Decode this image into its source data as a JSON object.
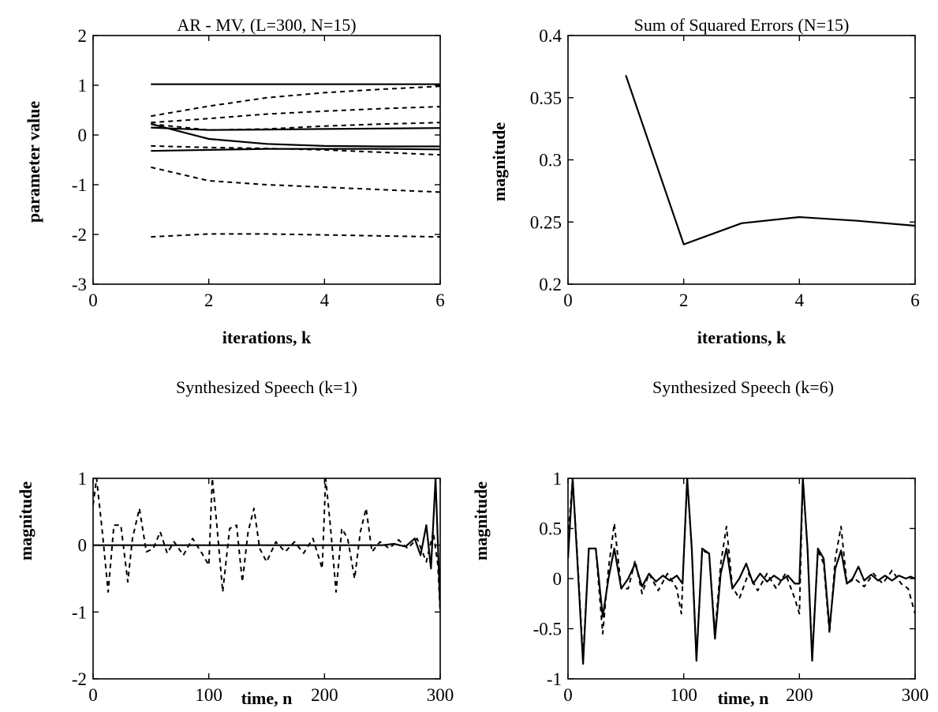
{
  "chart_data": [
    {
      "type": "line",
      "title": "AR - MV, (L=300, N=15)",
      "xlabel": "iterations, k",
      "ylabel": "parameter value",
      "xlim": [
        0,
        6
      ],
      "ylim": [
        -3,
        2
      ],
      "xticks": [
        "0",
        "2",
        "4",
        "6"
      ],
      "yticks": [
        "-3",
        "-2",
        "-1",
        "0",
        "1",
        "2"
      ],
      "series": [
        {
          "style": "solid",
          "x": [
            1,
            6
          ],
          "y": [
            1.02,
            1.02
          ]
        },
        {
          "style": "solid",
          "x": [
            1,
            2,
            3,
            4,
            5,
            6
          ],
          "y": [
            0.15,
            0.1,
            0.11,
            0.12,
            0.13,
            0.14
          ]
        },
        {
          "style": "solid",
          "x": [
            1,
            2,
            3,
            4,
            5,
            6
          ],
          "y": [
            0.22,
            -0.08,
            -0.18,
            -0.22,
            -0.23,
            -0.23
          ]
        },
        {
          "style": "solid",
          "x": [
            1,
            2,
            3,
            4,
            5,
            6
          ],
          "y": [
            -0.32,
            -0.3,
            -0.28,
            -0.28,
            -0.28,
            -0.29
          ]
        },
        {
          "style": "dashed",
          "x": [
            1,
            2,
            3,
            4,
            5,
            6
          ],
          "y": [
            0.38,
            0.58,
            0.75,
            0.85,
            0.92,
            0.98
          ]
        },
        {
          "style": "dashed",
          "x": [
            1,
            2,
            3,
            4,
            5,
            6
          ],
          "y": [
            0.25,
            0.33,
            0.42,
            0.48,
            0.53,
            0.57
          ]
        },
        {
          "style": "dashed",
          "x": [
            1,
            2,
            3,
            4,
            5,
            6
          ],
          "y": [
            0.22,
            0.1,
            0.12,
            0.18,
            0.22,
            0.25
          ]
        },
        {
          "style": "dashed",
          "x": [
            1,
            2,
            3,
            4,
            5,
            6
          ],
          "y": [
            -0.22,
            -0.25,
            -0.27,
            -0.3,
            -0.35,
            -0.4
          ]
        },
        {
          "style": "dashed",
          "x": [
            1,
            2,
            3,
            4,
            5,
            6
          ],
          "y": [
            -0.65,
            -0.92,
            -1.0,
            -1.05,
            -1.1,
            -1.15
          ]
        },
        {
          "style": "dashed",
          "x": [
            1,
            2,
            3,
            4,
            5,
            6
          ],
          "y": [
            -2.05,
            -1.99,
            -1.99,
            -2.01,
            -2.03,
            -2.05
          ]
        }
      ]
    },
    {
      "type": "line",
      "title": "Sum of Squared Errors (N=15)",
      "xlabel": "iterations, k",
      "ylabel": "magnitude",
      "xlim": [
        0,
        6
      ],
      "ylim": [
        0.2,
        0.4
      ],
      "xticks": [
        "0",
        "2",
        "4",
        "6"
      ],
      "yticks": [
        "0.2",
        "0.25",
        "0.3",
        "0.35",
        "0.4"
      ],
      "series": [
        {
          "style": "solid",
          "x": [
            1,
            2,
            3,
            4,
            5,
            6
          ],
          "y": [
            0.368,
            0.232,
            0.249,
            0.254,
            0.251,
            0.247
          ]
        }
      ]
    },
    {
      "type": "line",
      "title": "Synthesized Speech  (k=1)",
      "xlabel": "time, n",
      "ylabel": "magnitude",
      "xlim": [
        0,
        300
      ],
      "ylim": [
        -2,
        1
      ],
      "xticks": [
        "0",
        "100",
        "200",
        "300"
      ],
      "yticks": [
        "-2",
        "-1",
        "0",
        "1"
      ],
      "series": [
        {
          "style": "solid",
          "x": [
            0,
            250,
            260,
            270,
            278,
            283,
            288,
            292,
            296,
            300
          ],
          "y": [
            0,
            0,
            0.02,
            -0.02,
            0.1,
            -0.15,
            0.3,
            -0.35,
            1.0,
            -0.95
          ]
        },
        {
          "style": "dashed",
          "x": [
            0,
            3,
            8,
            13,
            18,
            24,
            30,
            34,
            40,
            46,
            52,
            58,
            64,
            70,
            78,
            86,
            94,
            100,
            103,
            107,
            112,
            118,
            124,
            129,
            134,
            139,
            144,
            150,
            158,
            166,
            174,
            182,
            190,
            198,
            201,
            205,
            210,
            215,
            220,
            226,
            231,
            236,
            241,
            248,
            256,
            264,
            272,
            280,
            288,
            294,
            298,
            300
          ],
          "y": [
            0.6,
            1.0,
            0.2,
            -0.7,
            0.3,
            0.3,
            -0.55,
            0.1,
            0.55,
            -0.1,
            -0.05,
            0.2,
            -0.12,
            0.05,
            -0.15,
            0.1,
            -0.12,
            -0.3,
            1.0,
            0.3,
            -0.7,
            0.25,
            0.3,
            -0.55,
            0.2,
            0.55,
            -0.05,
            -0.25,
            0.05,
            -0.1,
            0.05,
            -0.12,
            0.1,
            -0.35,
            1.0,
            0.3,
            -0.7,
            0.25,
            0.1,
            -0.5,
            0.2,
            0.55,
            -0.1,
            0.05,
            -0.05,
            0.08,
            -0.05,
            0.1,
            -0.25,
            0.2,
            -0.3,
            -1.0
          ]
        }
      ]
    },
    {
      "type": "line",
      "title": "Synthesized Speech  (k=6)",
      "xlabel": "time, n",
      "ylabel": "magnitude",
      "xlim": [
        0,
        300
      ],
      "ylim": [
        -1,
        1
      ],
      "xticks": [
        "0",
        "100",
        "200",
        "300"
      ],
      "yticks": [
        "-1",
        "-0.5",
        "0",
        "0.5",
        "1"
      ],
      "series": [
        {
          "style": "solid",
          "x": [
            0,
            4,
            8,
            13,
            18,
            24,
            30,
            35,
            40,
            46,
            52,
            58,
            64,
            70,
            76,
            82,
            88,
            94,
            99,
            103,
            107,
            111,
            116,
            122,
            127,
            132,
            137,
            142,
            148,
            154,
            160,
            166,
            172,
            178,
            184,
            190,
            196,
            200,
            203,
            207,
            211,
            216,
            221,
            226,
            231,
            236,
            241,
            246,
            251,
            256,
            262,
            268,
            274,
            280,
            286,
            292,
            296,
            300
          ],
          "y": [
            0.2,
            1.0,
            0.2,
            -0.85,
            0.3,
            0.3,
            -0.38,
            0.0,
            0.3,
            -0.1,
            0.0,
            0.15,
            -0.08,
            0.05,
            -0.03,
            0.03,
            -0.02,
            0.03,
            -0.05,
            1.0,
            0.3,
            -0.82,
            0.3,
            0.25,
            -0.6,
            0.05,
            0.3,
            -0.1,
            0.0,
            0.15,
            -0.05,
            0.05,
            -0.03,
            0.03,
            -0.02,
            0.03,
            -0.05,
            -0.05,
            1.0,
            0.3,
            -0.82,
            0.3,
            0.2,
            -0.5,
            0.1,
            0.28,
            -0.05,
            0.0,
            0.12,
            -0.02,
            0.04,
            -0.02,
            0.03,
            -0.02,
            0.03,
            0.0,
            0.02,
            0.0
          ]
        },
        {
          "style": "dashed",
          "x": [
            0,
            4,
            8,
            13,
            18,
            24,
            30,
            35,
            40,
            46,
            52,
            58,
            64,
            70,
            78,
            86,
            94,
            98,
            103,
            107,
            111,
            116,
            122,
            127,
            132,
            137,
            142,
            148,
            156,
            164,
            172,
            180,
            188,
            196,
            200,
            203,
            207,
            211,
            216,
            221,
            226,
            231,
            236,
            241,
            248,
            256,
            264,
            272,
            280,
            288,
            294,
            300
          ],
          "y": [
            0.4,
            1.0,
            0.25,
            -0.8,
            0.3,
            0.3,
            -0.55,
            0.1,
            0.55,
            -0.1,
            -0.1,
            0.18,
            -0.15,
            0.05,
            -0.12,
            0.05,
            -0.1,
            -0.35,
            1.0,
            0.3,
            -0.78,
            0.28,
            0.25,
            -0.55,
            0.15,
            0.52,
            -0.08,
            -0.2,
            0.05,
            -0.12,
            0.05,
            -0.1,
            0.05,
            -0.2,
            -0.35,
            1.0,
            0.3,
            -0.78,
            0.28,
            0.15,
            -0.55,
            0.2,
            0.52,
            -0.05,
            0.0,
            -0.08,
            0.05,
            -0.05,
            0.08,
            -0.05,
            -0.1,
            -0.35
          ]
        }
      ]
    }
  ]
}
